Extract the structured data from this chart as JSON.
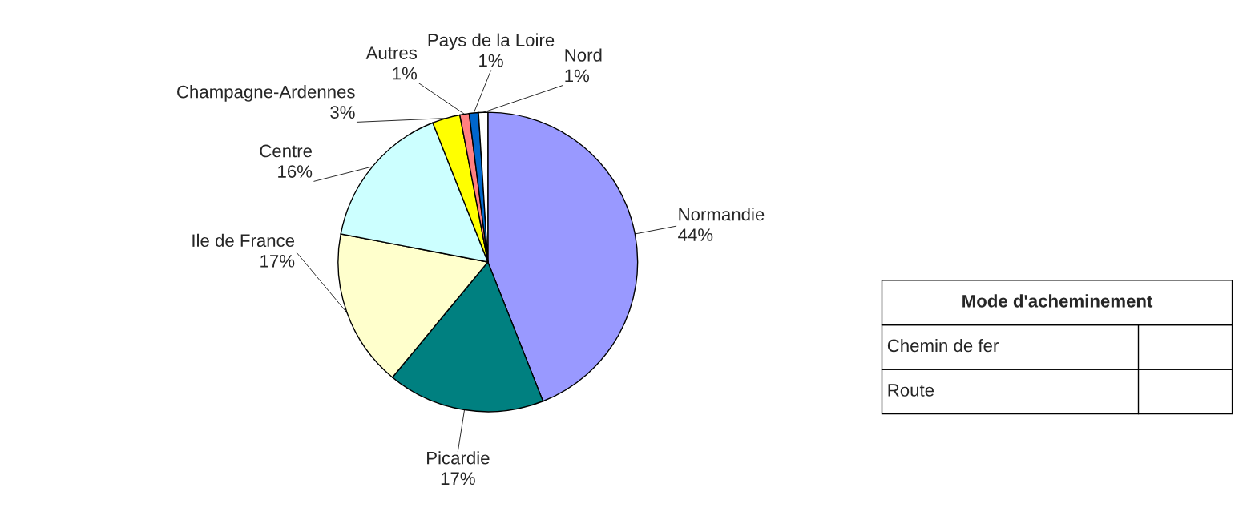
{
  "chart_data": {
    "type": "pie",
    "categories": [
      "Normandie",
      "Picardie",
      "Ile de France",
      "Centre",
      "Champagne-Ardennes",
      "Autres",
      "Pays de la Loire",
      "Nord"
    ],
    "values": [
      44,
      17,
      17,
      16,
      3,
      1,
      1,
      1
    ],
    "value_labels": [
      "44%",
      "17%",
      "17%",
      "16%",
      "3%",
      "1%",
      "1%",
      "1%"
    ],
    "colors": [
      "#9999ff",
      "#008080",
      "#ffffcc",
      "#ccffff",
      "#ffff00",
      "#ff8080",
      "#0066cc",
      "#ffffff"
    ],
    "annotations": [
      "Mode d'acheminement",
      "Chemin de fer",
      "Route"
    ]
  }
}
